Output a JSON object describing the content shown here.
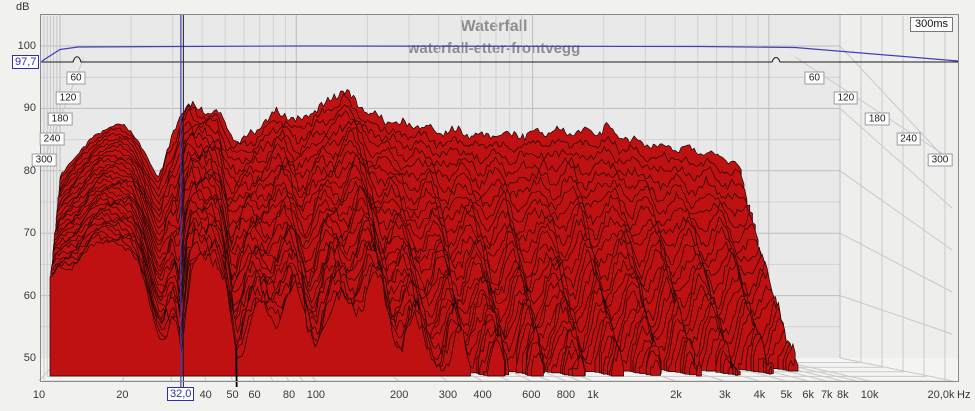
{
  "header": {
    "title": "Waterfall",
    "subtitle": "waterfall-etter-frontvegg"
  },
  "axes": {
    "y_unit": "dB",
    "x_unit": "Hz",
    "y_ticks": [
      100,
      90,
      80,
      70,
      60,
      50
    ],
    "x_labeled_ticks": [
      {
        "f": 10,
        "label": "10"
      },
      {
        "f": 20,
        "label": "20"
      },
      {
        "f": 40,
        "label": "40"
      },
      {
        "f": 50,
        "label": "50"
      },
      {
        "f": 60,
        "label": "60"
      },
      {
        "f": 80,
        "label": "80"
      },
      {
        "f": 100,
        "label": "100"
      },
      {
        "f": 200,
        "label": "200"
      },
      {
        "f": 300,
        "label": "300"
      },
      {
        "f": 400,
        "label": "400"
      },
      {
        "f": 600,
        "label": "600"
      },
      {
        "f": 800,
        "label": "800"
      },
      {
        "f": 1000,
        "label": "1k"
      },
      {
        "f": 2000,
        "label": "2k"
      },
      {
        "f": 3000,
        "label": "3k"
      },
      {
        "f": 4000,
        "label": "4k"
      },
      {
        "f": 5000,
        "label": "5k"
      },
      {
        "f": 6000,
        "label": "6k"
      },
      {
        "f": 7000,
        "label": "7k"
      },
      {
        "f": 8000,
        "label": "8k"
      },
      {
        "f": 10000,
        "label": "10k"
      },
      {
        "f": 20000,
        "label": "20,0k"
      }
    ],
    "time_ticks_ms": [
      60,
      120,
      180,
      240,
      300
    ],
    "window_badge": "300ms"
  },
  "cursor": {
    "freq_hz": 32,
    "freq_label": "32,0",
    "level_db": 97.7,
    "level_label": "97,7"
  },
  "colors": {
    "surface_fill": "#bf1111",
    "surface_stroke": "#1a0606",
    "overlay_blue": "#4040b8",
    "overlay_black": "#1a1a1a",
    "cursor_blue": "#3f3fae",
    "cursor_dark": "#1c1c2e",
    "plot_bg": "#e9e9e9",
    "floor_bg": "#f4f4f2",
    "rightwall_bg": "#eeeeed",
    "grid_major": "#bdbdbd",
    "grid_minor": "#d2d2d2",
    "grid_wall": "#c9c9c9",
    "frame": "#8a8a8a",
    "title_color": "#8d8d8d",
    "blue_box": "#2d2dbb"
  },
  "chart_data": {
    "type": "waterfall",
    "title": "Waterfall",
    "subtitle": "waterfall-etter-frontvegg",
    "xlabel": "Hz",
    "ylabel": "dB",
    "ylim": [
      50,
      105.5
    ],
    "freq_range_hz": [
      10,
      20000
    ],
    "surface_freq_range_hz": [
      10,
      7800
    ],
    "time_range_ms": [
      0,
      300
    ],
    "slices": 30,
    "floor_db": 50,
    "log_x": true,
    "envelope_points_f_db_decay": [
      [
        10,
        79,
        0.028
      ],
      [
        12,
        83,
        0.024
      ],
      [
        14,
        85.5,
        0.021
      ],
      [
        16,
        87,
        0.019
      ],
      [
        18,
        87.5,
        0.021
      ],
      [
        20,
        86.5,
        0.028
      ],
      [
        23,
        82.5,
        0.048
      ],
      [
        26,
        79,
        0.07
      ],
      [
        29,
        84,
        0.1
      ],
      [
        31,
        87,
        0.145
      ],
      [
        33,
        90,
        0.06
      ],
      [
        35,
        91,
        0.042
      ],
      [
        38,
        90,
        0.05
      ],
      [
        42,
        89.5,
        0.06
      ],
      [
        46,
        90,
        0.08
      ],
      [
        50,
        87.5,
        0.115
      ],
      [
        54,
        85.5,
        0.1
      ],
      [
        58,
        85,
        0.09
      ],
      [
        63,
        85.5,
        0.082
      ],
      [
        68,
        86.5,
        0.078
      ],
      [
        74,
        88,
        0.08
      ],
      [
        82,
        89.5,
        0.09
      ],
      [
        90,
        89,
        0.1
      ],
      [
        98,
        88,
        0.105
      ],
      [
        107,
        88.5,
        0.1
      ],
      [
        118,
        89.5,
        0.096
      ],
      [
        130,
        90.5,
        0.09
      ],
      [
        145,
        92,
        0.087
      ],
      [
        160,
        93,
        0.085
      ],
      [
        178,
        91,
        0.096
      ],
      [
        198,
        89.5,
        0.108
      ],
      [
        220,
        88.5,
        0.115
      ],
      [
        245,
        88,
        0.125
      ],
      [
        272,
        87.5,
        0.12
      ],
      [
        303,
        87.5,
        0.135
      ],
      [
        340,
        87,
        0.127
      ],
      [
        380,
        86.5,
        0.14
      ],
      [
        425,
        86,
        0.132
      ],
      [
        475,
        86.5,
        0.145
      ],
      [
        530,
        86,
        0.138
      ],
      [
        595,
        85.5,
        0.15
      ],
      [
        665,
        86,
        0.143
      ],
      [
        745,
        85.5,
        0.153
      ],
      [
        835,
        86,
        0.147
      ],
      [
        935,
        85.5,
        0.157
      ],
      [
        1050,
        86.5,
        0.15
      ],
      [
        1180,
        86,
        0.16
      ],
      [
        1320,
        86.5,
        0.154
      ],
      [
        1480,
        86,
        0.164
      ],
      [
        1660,
        86.5,
        0.157
      ],
      [
        1860,
        86,
        0.167
      ],
      [
        2080,
        87,
        0.16
      ],
      [
        2340,
        85.5,
        0.17
      ],
      [
        2620,
        85,
        0.164
      ],
      [
        2940,
        84.5,
        0.173
      ],
      [
        3300,
        84,
        0.167
      ],
      [
        3700,
        84,
        0.176
      ],
      [
        4150,
        83.5,
        0.17
      ],
      [
        4650,
        83.5,
        0.18
      ],
      [
        5220,
        83,
        0.175
      ],
      [
        5850,
        82.5,
        0.184
      ],
      [
        6560,
        82,
        0.179
      ],
      [
        7350,
        81,
        0.193
      ],
      [
        7800,
        79,
        0.21
      ]
    ],
    "notch_artifact_hz": 50,
    "deep_null_hz": 31,
    "legend_position": "none",
    "grid": true
  }
}
